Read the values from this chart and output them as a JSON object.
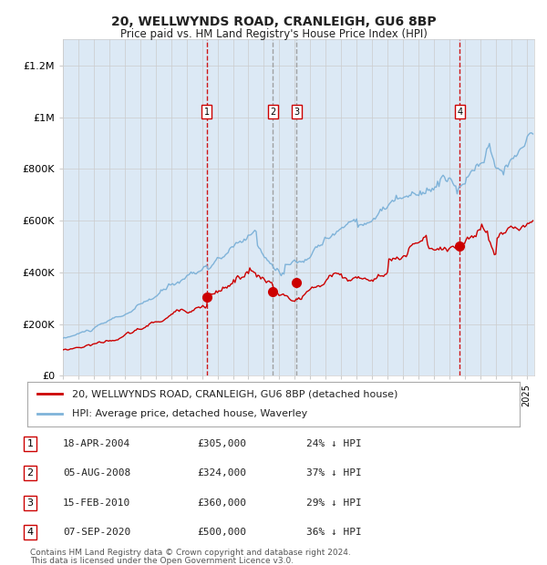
{
  "title": "20, WELLWYNDS ROAD, CRANLEIGH, GU6 8BP",
  "subtitle": "Price paid vs. HM Land Registry's House Price Index (HPI)",
  "background_color": "#ffffff",
  "chart_bg_color": "#dce9f5",
  "sale_color": "#cc0000",
  "hpi_color": "#7fb3d9",
  "sale_label": "20, WELLWYNDS ROAD, CRANLEIGH, GU6 8BP (detached house)",
  "hpi_label": "HPI: Average price, detached house, Waverley",
  "transactions": [
    {
      "num": 1,
      "date": "18-APR-2004",
      "year": 2004.29,
      "price": 305000,
      "pct": "24%"
    },
    {
      "num": 2,
      "date": "05-AUG-2008",
      "year": 2008.59,
      "price": 324000,
      "pct": "37%"
    },
    {
      "num": 3,
      "date": "15-FEB-2010",
      "year": 2010.12,
      "price": 360000,
      "pct": "29%"
    },
    {
      "num": 4,
      "date": "07-SEP-2020",
      "year": 2020.68,
      "price": 500000,
      "pct": "36%"
    }
  ],
  "footnote1": "Contains HM Land Registry data © Crown copyright and database right 2024.",
  "footnote2": "This data is licensed under the Open Government Licence v3.0.",
  "ylim": [
    0,
    1300000
  ],
  "xlim_start": 1995.0,
  "xlim_end": 2025.5,
  "yticks": [
    0,
    200000,
    400000,
    600000,
    800000,
    1000000,
    1200000
  ],
  "ylabels": [
    "£0",
    "£200K",
    "£400K",
    "£600K",
    "£800K",
    "£1M",
    "£1.2M"
  ]
}
